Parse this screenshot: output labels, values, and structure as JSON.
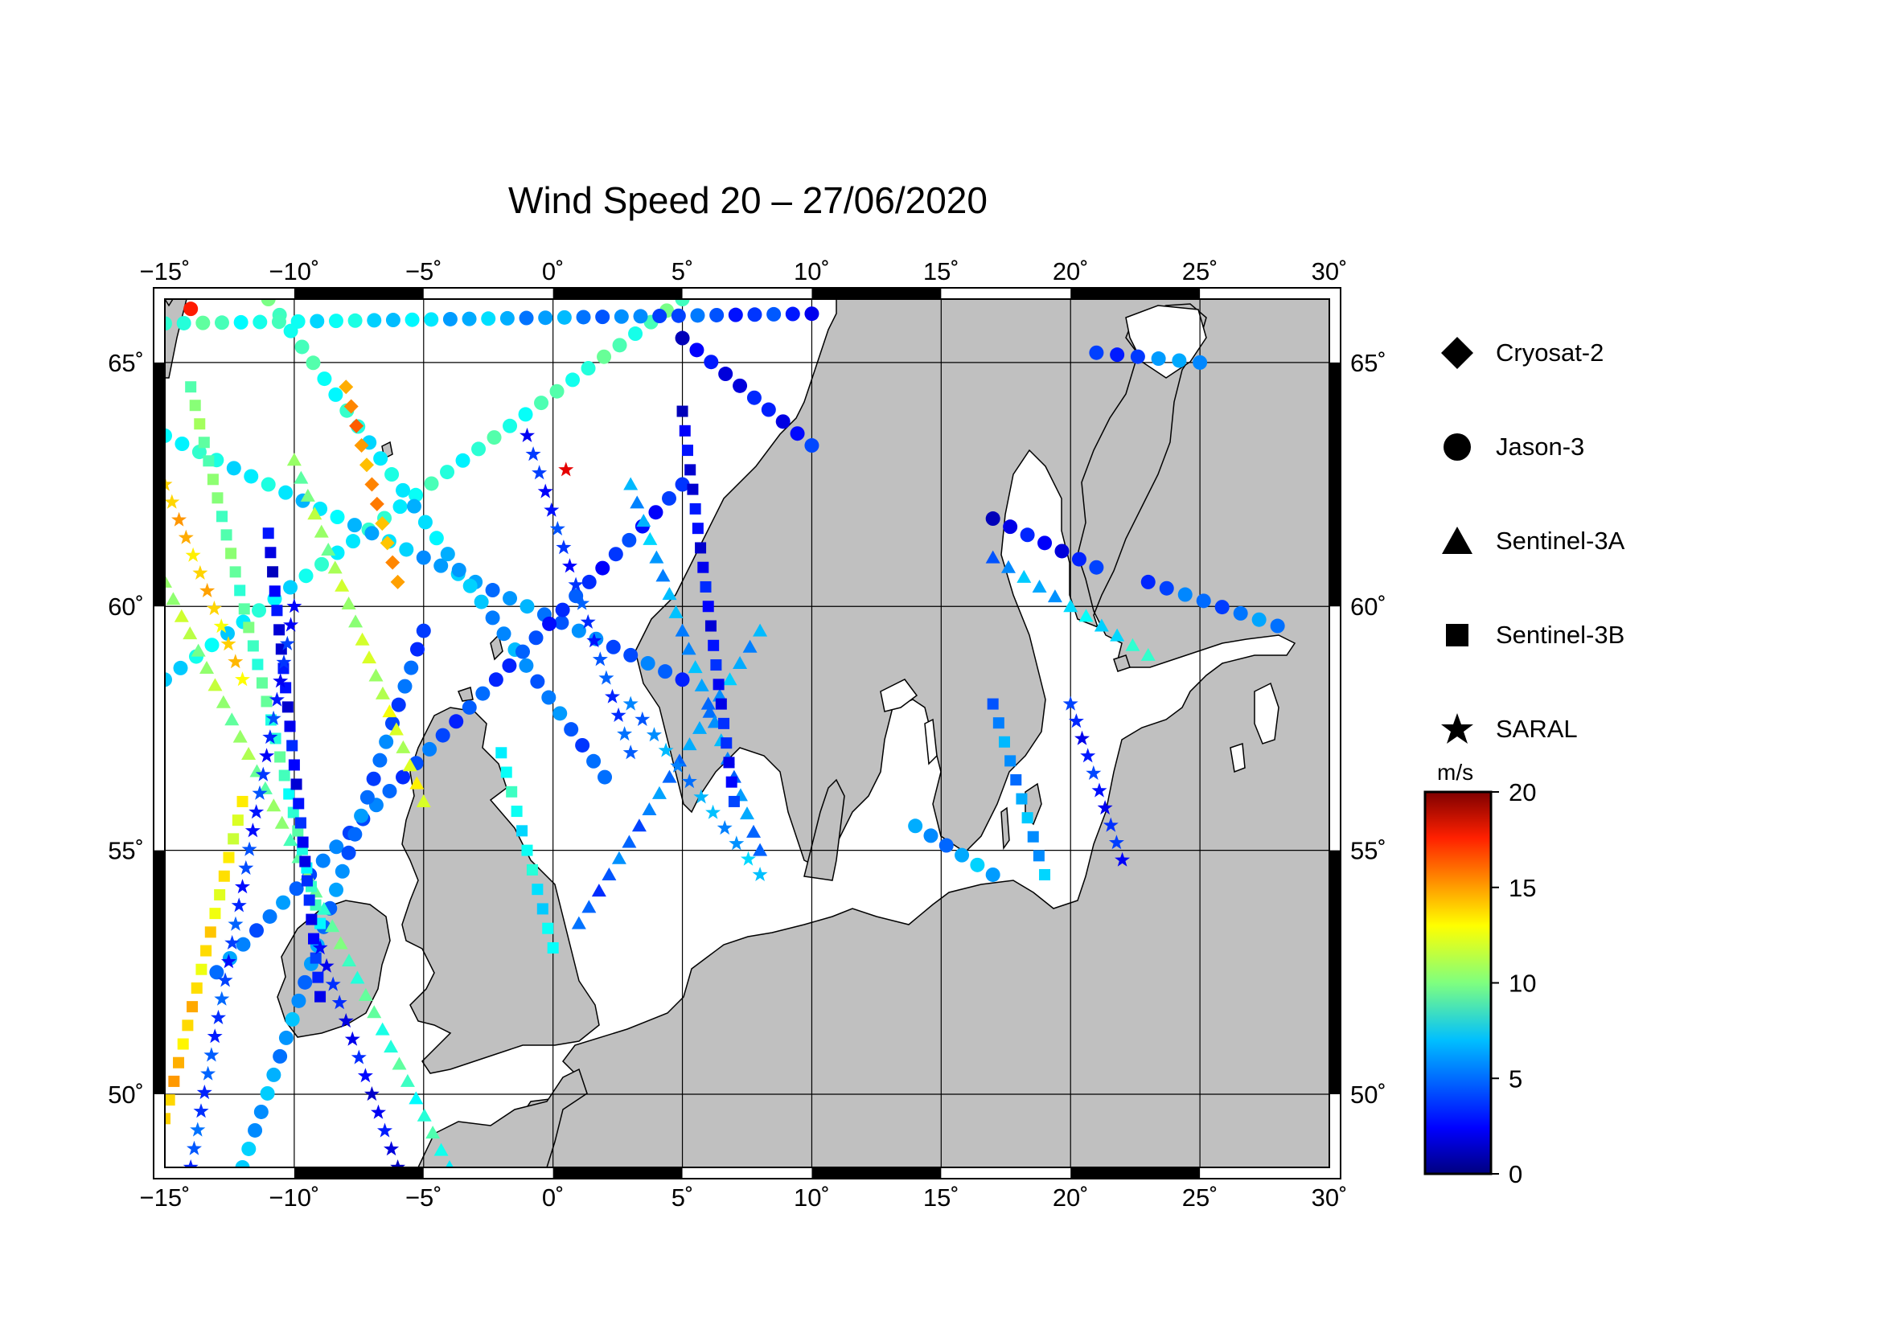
{
  "title": "Wind Speed 20 – 27/06/2020",
  "map": {
    "lon_range": [
      -15,
      30
    ],
    "lat_range": [
      48.5,
      66.3
    ],
    "lon_ticks": [
      -15,
      -10,
      -5,
      0,
      5,
      10,
      15,
      20,
      25,
      30
    ],
    "lat_ticks": [
      50,
      55,
      60,
      65
    ],
    "lon_tick_labels": [
      "−15˚",
      "−10˚",
      "−5˚",
      "0˚",
      "5˚",
      "10˚",
      "15˚",
      "20˚",
      "25˚",
      "30˚"
    ],
    "lat_tick_labels": [
      "50˚",
      "55˚",
      "60˚",
      "65˚"
    ],
    "land_color": "#c0c0c0",
    "sea_color": "#ffffff",
    "grid": true
  },
  "legend": {
    "items": [
      {
        "label": "Cryosat-2",
        "icon": "diamond-icon"
      },
      {
        "label": "Jason-3",
        "icon": "circle-icon"
      },
      {
        "label": "Sentinel-3A",
        "icon": "triangle-icon"
      },
      {
        "label": "Sentinel-3B",
        "icon": "square-icon"
      },
      {
        "label": "SARAL",
        "icon": "star-icon"
      }
    ]
  },
  "colorbar": {
    "unit": "m/s",
    "min": 0,
    "max": 20,
    "ticks": [
      0,
      5,
      10,
      15,
      20
    ],
    "tick_labels": [
      "0",
      "5",
      "10",
      "15",
      "20"
    ],
    "colormap": "jet"
  },
  "chart_data": {
    "type": "scatter",
    "title": "Wind Speed 20 – 27/06/2020",
    "xlabel": "",
    "ylabel": "",
    "xlim": [
      -15,
      30
    ],
    "ylim": [
      48.5,
      66.3
    ],
    "color_variable": "wind speed (m/s)",
    "tracks": [
      {
        "satellite": "Jason-3",
        "marker": "circle",
        "start": [
          -15,
          58.5
        ],
        "end": [
          5,
          66.3
        ],
        "speed_start": 7,
        "speed_end": 9
      },
      {
        "satellite": "Jason-3",
        "marker": "circle",
        "start": [
          -15,
          63.5
        ],
        "end": [
          5,
          58.5
        ],
        "speed_start": 8,
        "speed_end": 4
      },
      {
        "satellite": "Jason-3",
        "marker": "circle",
        "start": [
          -11,
          66.3
        ],
        "end": [
          2,
          56.5
        ],
        "speed_start": 9,
        "speed_end": 4
      },
      {
        "satellite": "Jason-3",
        "marker": "circle",
        "start": [
          -13,
          52.5
        ],
        "end": [
          5,
          62.5
        ],
        "speed_start": 5,
        "speed_end": 3
      },
      {
        "satellite": "Jason-3",
        "marker": "circle",
        "start": [
          -12,
          48.5
        ],
        "end": [
          -5,
          59.5
        ],
        "speed_start": 6,
        "speed_end": 4
      },
      {
        "satellite": "Jason-3",
        "marker": "circle",
        "start": [
          5,
          65.5
        ],
        "end": [
          10,
          63.3
        ],
        "speed_start": 2,
        "speed_end": 3
      },
      {
        "satellite": "Jason-3",
        "marker": "circle",
        "start": [
          21,
          65.2
        ],
        "end": [
          25,
          65.0
        ],
        "speed_start": 3,
        "speed_end": 6
      },
      {
        "satellite": "Jason-3",
        "marker": "circle",
        "start": [
          17,
          61.8
        ],
        "end": [
          21,
          60.8
        ],
        "speed_start": 2,
        "speed_end": 3
      },
      {
        "satellite": "Jason-3",
        "marker": "circle",
        "start": [
          14,
          55.5
        ],
        "end": [
          17,
          54.5
        ],
        "speed_start": 5,
        "speed_end": 6
      },
      {
        "satellite": "Jason-3",
        "marker": "circle",
        "start": [
          23,
          60.5
        ],
        "end": [
          28,
          59.6
        ],
        "speed_start": 4,
        "speed_end": 5
      },
      {
        "satellite": "Jason-3",
        "marker": "circle",
        "start": [
          -15,
          65.8
        ],
        "end": [
          10,
          66.0
        ],
        "speed_start": 9,
        "speed_end": 3
      },
      {
        "satellite": "Sentinel-3A",
        "marker": "triangle",
        "start": [
          -15,
          60.5
        ],
        "end": [
          -4,
          48.5
        ],
        "speed_start": 11,
        "speed_end": 8
      },
      {
        "satellite": "Sentinel-3A",
        "marker": "triangle",
        "start": [
          1,
          53.5
        ],
        "end": [
          8,
          59.5
        ],
        "speed_start": 4,
        "speed_end": 6
      },
      {
        "satellite": "Sentinel-3A",
        "marker": "triangle",
        "start": [
          3,
          62.5
        ],
        "end": [
          8,
          55.0
        ],
        "speed_start": 6,
        "speed_end": 5
      },
      {
        "satellite": "Sentinel-3A",
        "marker": "triangle",
        "start": [
          17,
          61.0
        ],
        "end": [
          23,
          59.0
        ],
        "speed_start": 5,
        "speed_end": 8
      },
      {
        "satellite": "Sentinel-3A",
        "marker": "triangle",
        "start": [
          -10,
          63.0
        ],
        "end": [
          -5,
          56.0
        ],
        "speed_start": 10,
        "speed_end": 12
      },
      {
        "satellite": "Sentinel-3B",
        "marker": "square",
        "start": [
          -14,
          64.5
        ],
        "end": [
          -9,
          53.5
        ],
        "speed_start": 10,
        "speed_end": 8
      },
      {
        "satellite": "Sentinel-3B",
        "marker": "square",
        "start": [
          -11,
          61.5
        ],
        "end": [
          -9,
          52.0
        ],
        "speed_start": 2,
        "speed_end": 3
      },
      {
        "satellite": "Sentinel-3B",
        "marker": "square",
        "start": [
          5,
          64.0
        ],
        "end": [
          7,
          56.0
        ],
        "speed_start": 2,
        "speed_end": 3
      },
      {
        "satellite": "Sentinel-3B",
        "marker": "square",
        "start": [
          17,
          58.0
        ],
        "end": [
          19,
          54.5
        ],
        "speed_start": 5,
        "speed_end": 6
      },
      {
        "satellite": "Sentinel-3B",
        "marker": "square",
        "start": [
          -2,
          57.0
        ],
        "end": [
          0,
          53.0
        ],
        "speed_start": 8,
        "speed_end": 7
      },
      {
        "satellite": "Sentinel-3B",
        "marker": "square",
        "start": [
          -15,
          49.5
        ],
        "end": [
          -12,
          56.0
        ],
        "speed_start": 14,
        "speed_end": 12
      },
      {
        "satellite": "SARAL",
        "marker": "star",
        "start": [
          -14,
          48.5
        ],
        "end": [
          -10,
          60.0
        ],
        "speed_start": 4,
        "speed_end": 3
      },
      {
        "satellite": "SARAL",
        "marker": "star",
        "start": [
          -1,
          63.5
        ],
        "end": [
          3,
          57.0
        ],
        "speed_start": 3,
        "speed_end": 4
      },
      {
        "satellite": "SARAL",
        "marker": "star",
        "start": [
          3,
          58.0
        ],
        "end": [
          8,
          54.5
        ],
        "speed_start": 5,
        "speed_end": 6
      },
      {
        "satellite": "SARAL",
        "marker": "star",
        "start": [
          20,
          58.0
        ],
        "end": [
          22,
          54.8
        ],
        "speed_start": 3,
        "speed_end": 3
      },
      {
        "satellite": "SARAL",
        "marker": "star",
        "start": [
          -9,
          53.0
        ],
        "end": [
          -6,
          48.5
        ],
        "speed_start": 3,
        "speed_end": 2
      },
      {
        "satellite": "SARAL",
        "marker": "star",
        "start": [
          -15,
          62.5
        ],
        "end": [
          -12,
          58.5
        ],
        "speed_start": 14,
        "speed_end": 13
      },
      {
        "satellite": "Cryosat-2",
        "marker": "diamond",
        "start": [
          -8,
          64.5
        ],
        "end": [
          -6,
          60.5
        ],
        "speed_start": 15,
        "speed_end": 14
      }
    ],
    "notable_points": [
      {
        "satellite": "SARAL",
        "lon": 0.5,
        "lat": 62.8,
        "speed": 18
      },
      {
        "satellite": "Jason-3",
        "lon": -14,
        "lat": 66.1,
        "speed": 17
      }
    ]
  }
}
